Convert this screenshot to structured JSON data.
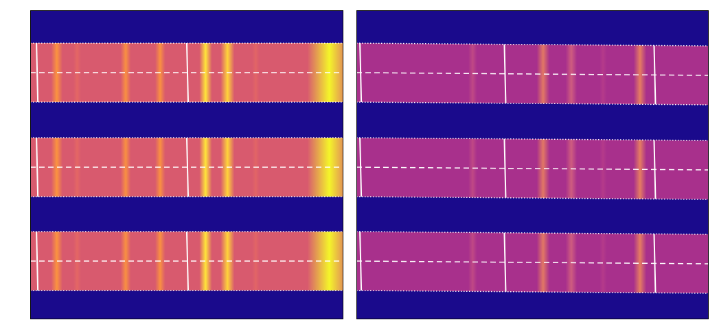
{
  "panels": [
    {
      "id": "left",
      "background_color": "#1a0a8c",
      "strip_color": "#d85a6e",
      "line_color": "#ffffff",
      "strips": [
        {
          "lines": [
            {
              "pos": 0.02
            },
            {
              "pos": 0.5
            }
          ]
        },
        {
          "lines": [
            {
              "pos": 0.02
            },
            {
              "pos": 0.5
            }
          ]
        },
        {
          "lines": [
            {
              "pos": 0.02
            },
            {
              "pos": 0.5
            }
          ]
        }
      ],
      "bands": [
        {
          "pos": 0.085,
          "width": 0.018,
          "color": "#ff9a3a",
          "opacity": 0.9
        },
        {
          "pos": 0.15,
          "width": 0.012,
          "color": "#f0745a",
          "opacity": 0.5
        },
        {
          "pos": 0.305,
          "width": 0.016,
          "color": "#ff9a3a",
          "opacity": 0.85
        },
        {
          "pos": 0.415,
          "width": 0.016,
          "color": "#ff9a3a",
          "opacity": 0.85
        },
        {
          "pos": 0.56,
          "width": 0.02,
          "color": "#ffe53a",
          "opacity": 1.0
        },
        {
          "pos": 0.63,
          "width": 0.022,
          "color": "#ffd43a",
          "opacity": 1.0
        },
        {
          "pos": 0.72,
          "width": 0.012,
          "color": "#f0745a",
          "opacity": 0.4
        },
        {
          "pos": 0.955,
          "width": 0.07,
          "color": "#f4f52a",
          "opacity": 1.0
        }
      ]
    },
    {
      "id": "right",
      "background_color": "#1a0a8c",
      "strip_color": "#a8308c",
      "line_color": "#ffffff",
      "strips": [
        {
          "lines": [
            {
              "pos": 0.01
            },
            {
              "pos": 0.42
            },
            {
              "pos": 0.845
            }
          ]
        },
        {
          "lines": [
            {
              "pos": 0.01
            },
            {
              "pos": 0.42
            },
            {
              "pos": 0.845
            }
          ]
        },
        {
          "lines": [
            {
              "pos": 0.01
            },
            {
              "pos": 0.42
            },
            {
              "pos": 0.845
            }
          ]
        }
      ],
      "bands": [
        {
          "pos": 0.33,
          "width": 0.012,
          "color": "#d05a80",
          "opacity": 0.6
        },
        {
          "pos": 0.53,
          "width": 0.018,
          "color": "#f08a5a",
          "opacity": 0.8
        },
        {
          "pos": 0.61,
          "width": 0.016,
          "color": "#e0707a",
          "opacity": 0.7
        },
        {
          "pos": 0.7,
          "width": 0.01,
          "color": "#c84a88",
          "opacity": 0.4
        },
        {
          "pos": 0.805,
          "width": 0.018,
          "color": "#f08a5a",
          "opacity": 0.85
        }
      ]
    }
  ]
}
